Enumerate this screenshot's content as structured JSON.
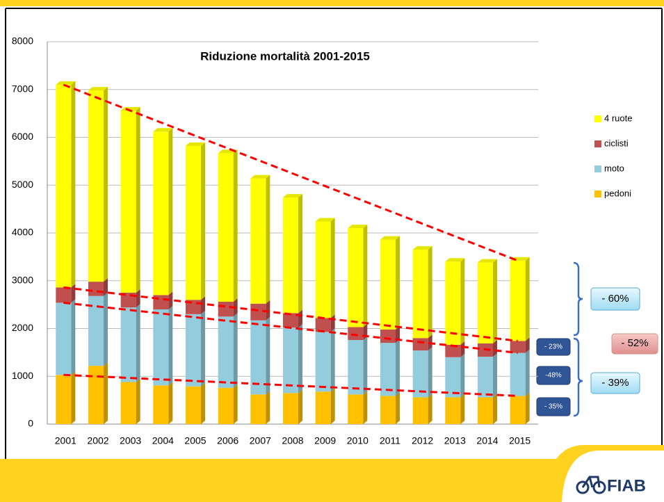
{
  "chart_data": {
    "type": "stacked-bar",
    "title": "Riduzione mortalità 2001-2015",
    "categories": [
      "2001",
      "2002",
      "2003",
      "2004",
      "2005",
      "2006",
      "2007",
      "2008",
      "2009",
      "2010",
      "2011",
      "2012",
      "2013",
      "2014",
      "2015"
    ],
    "series": [
      {
        "name": "pedoni",
        "color": "#ffc000",
        "values": [
          1030,
          1220,
          880,
          810,
          790,
          760,
          620,
          650,
          680,
          620,
          590,
          560,
          560,
          560,
          590
        ]
      },
      {
        "name": "moto",
        "color": "#93cddd",
        "values": [
          1510,
          1460,
          1560,
          1590,
          1510,
          1490,
          1550,
          1370,
          1250,
          1140,
          1110,
          980,
          840,
          850,
          900
        ]
      },
      {
        "name": "ciclisti",
        "color": "#c0504d",
        "values": [
          320,
          300,
          310,
          300,
          300,
          310,
          350,
          300,
          290,
          270,
          280,
          260,
          260,
          280,
          250
        ]
      },
      {
        "name": "4 ruote",
        "color": "#ffff00",
        "values": [
          4240,
          4000,
          3810,
          3420,
          3220,
          3110,
          2620,
          2420,
          2020,
          2070,
          1880,
          1850,
          1740,
          1690,
          1680
        ]
      }
    ],
    "ylim": [
      0,
      8000
    ],
    "yticks": [
      0,
      1000,
      2000,
      3000,
      4000,
      5000,
      6000,
      7000,
      8000
    ],
    "grid": true,
    "legend": "right",
    "annotations": [
      "- 60%",
      "- 52%",
      "- 39%",
      "- 23%",
      "-48%",
      "- 35%"
    ],
    "logo": "FIAB"
  }
}
